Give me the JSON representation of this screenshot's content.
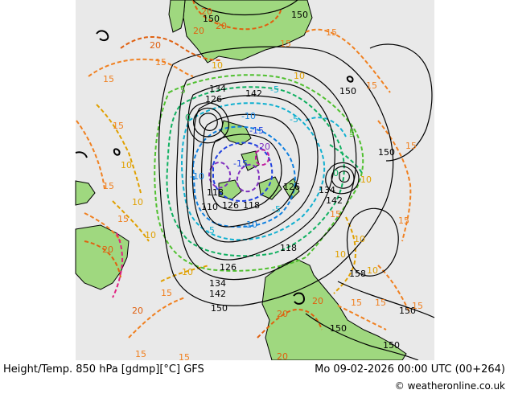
{
  "footer": {
    "title": "Height/Temp. 850 hPa [gdmp][°C] GFS",
    "valid_time": "Mo 09-02-2026 00:00 UTC (00+264)",
    "site": "© weatheronline.co.uk"
  },
  "colors": {
    "land": "#9fd87f",
    "sea": "#e9e9e9",
    "height": "#000000",
    "temp_warm_20": "#e06010",
    "temp_warm_15": "#f08020",
    "temp_warm_10": "#e0a000",
    "temp_5": "#50c030",
    "temp_0": "#10b060",
    "temp_minus5": "#10b0d0",
    "temp_minus10": "#1080e0",
    "temp_minus15": "#2040e0",
    "temp_minus20": "#8030c0",
    "temp_minus25": "#c020a0",
    "warm_20_line": "#e02080"
  },
  "height_labels": [
    "150",
    "142",
    "134",
    "126",
    "150",
    "150",
    "150",
    "126",
    "134",
    "142",
    "118",
    "110",
    "126",
    "118",
    "118",
    "126",
    "134",
    "142",
    "150",
    "158",
    "150",
    "150",
    "150"
  ],
  "temp_labels": [
    "20",
    "20",
    "15",
    "20",
    "15",
    "15",
    "15",
    "10",
    "15",
    "10",
    "15",
    "10",
    "5",
    "0",
    "-5",
    "-10",
    "-15",
    "-20",
    "-5",
    "-10",
    "-5",
    "5",
    "0",
    "15",
    "10",
    "10",
    "15",
    "20",
    "20",
    "15",
    "15",
    "10",
    "10",
    "15",
    "15",
    "20",
    "20",
    "15",
    "20",
    "15",
    "15",
    "20",
    "5",
    "10",
    "10",
    "15",
    "-5",
    "-10",
    "-15",
    "15",
    "10"
  ]
}
